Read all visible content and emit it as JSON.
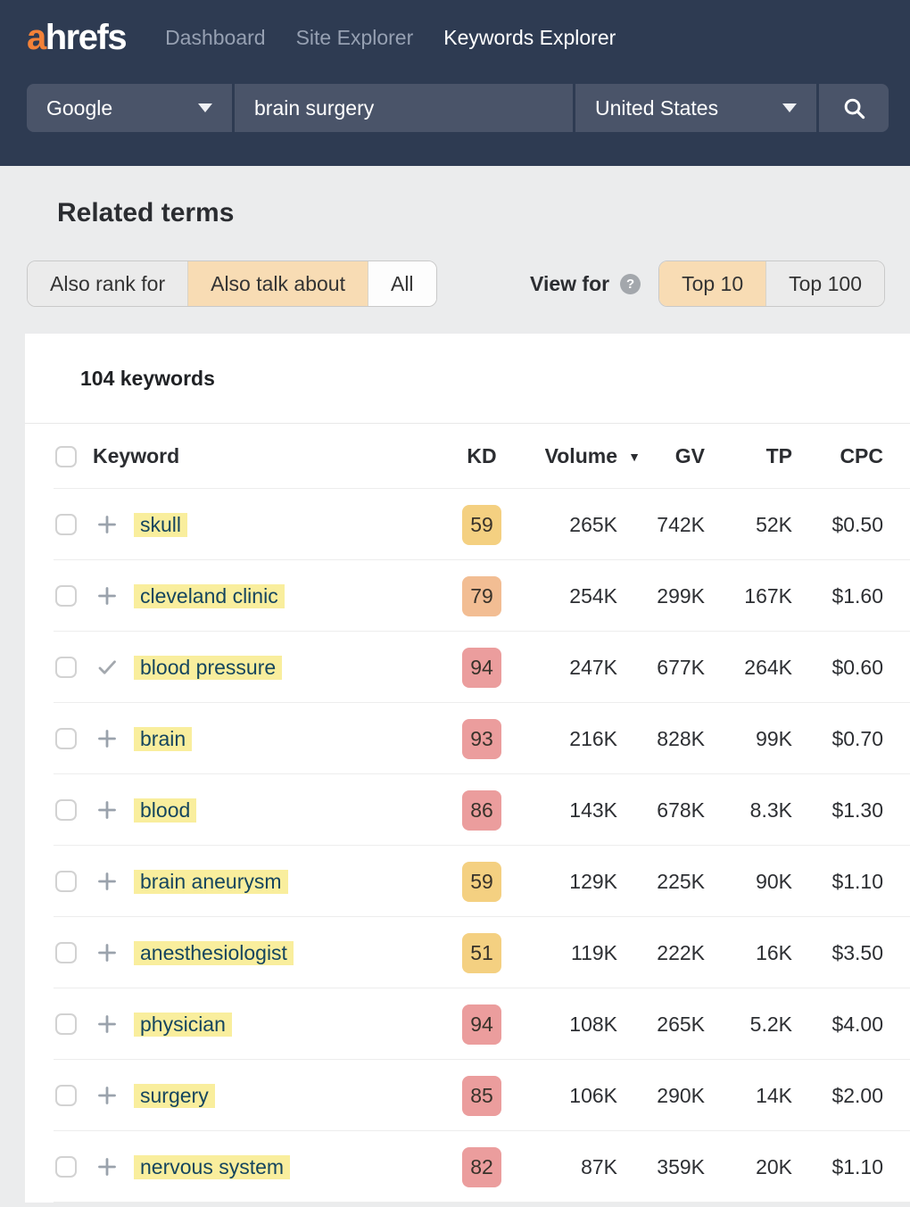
{
  "header": {
    "logo_a": "a",
    "logo_rest": "hrefs",
    "nav": [
      {
        "label": "Dashboard",
        "active": false
      },
      {
        "label": "Site Explorer",
        "active": false
      },
      {
        "label": "Keywords Explorer",
        "active": true
      }
    ],
    "search": {
      "engine": "Google",
      "query": "brain surgery",
      "country": "United States"
    }
  },
  "section": {
    "title": "Related terms"
  },
  "filters": {
    "scope": [
      {
        "label": "Also rank for",
        "state": "muted"
      },
      {
        "label": "Also talk about",
        "state": "selected"
      },
      {
        "label": "All",
        "state": "default"
      }
    ],
    "view_for_label": "View for",
    "help_glyph": "?",
    "view": [
      {
        "label": "Top 10",
        "state": "selected"
      },
      {
        "label": "Top 100",
        "state": "muted"
      }
    ]
  },
  "icons": {
    "sort_desc": "▼"
  },
  "table": {
    "summary": "104 keywords",
    "columns": {
      "keyword": "Keyword",
      "kd": "KD",
      "volume": "Volume",
      "gv": "GV",
      "tp": "TP",
      "cpc": "CPC"
    },
    "sort": {
      "column": "Volume",
      "direction": "desc"
    },
    "rows": [
      {
        "keyword": "skull",
        "action": "plus",
        "kd": "59",
        "kd_color": "yellow",
        "volume": "265K",
        "gv": "742K",
        "tp": "52K",
        "cpc": "$0.50"
      },
      {
        "keyword": "cleveland clinic",
        "action": "plus",
        "kd": "79",
        "kd_color": "orange",
        "volume": "254K",
        "gv": "299K",
        "tp": "167K",
        "cpc": "$1.60"
      },
      {
        "keyword": "blood pressure",
        "action": "check",
        "kd": "94",
        "kd_color": "red",
        "volume": "247K",
        "gv": "677K",
        "tp": "264K",
        "cpc": "$0.60"
      },
      {
        "keyword": "brain",
        "action": "plus",
        "kd": "93",
        "kd_color": "red",
        "volume": "216K",
        "gv": "828K",
        "tp": "99K",
        "cpc": "$0.70"
      },
      {
        "keyword": "blood",
        "action": "plus",
        "kd": "86",
        "kd_color": "red",
        "volume": "143K",
        "gv": "678K",
        "tp": "8.3K",
        "cpc": "$1.30"
      },
      {
        "keyword": "brain aneurysm",
        "action": "plus",
        "kd": "59",
        "kd_color": "yellow",
        "volume": "129K",
        "gv": "225K",
        "tp": "90K",
        "cpc": "$1.10"
      },
      {
        "keyword": "anesthesiologist",
        "action": "plus",
        "kd": "51",
        "kd_color": "yellow",
        "volume": "119K",
        "gv": "222K",
        "tp": "16K",
        "cpc": "$3.50"
      },
      {
        "keyword": "physician",
        "action": "plus",
        "kd": "94",
        "kd_color": "red",
        "volume": "108K",
        "gv": "265K",
        "tp": "5.2K",
        "cpc": "$4.00"
      },
      {
        "keyword": "surgery",
        "action": "plus",
        "kd": "85",
        "kd_color": "red",
        "volume": "106K",
        "gv": "290K",
        "tp": "14K",
        "cpc": "$2.00"
      },
      {
        "keyword": "nervous system",
        "action": "plus",
        "kd": "82",
        "kd_color": "red",
        "volume": "87K",
        "gv": "359K",
        "tp": "20K",
        "cpc": "$1.10"
      }
    ]
  },
  "colors": {
    "header_bg": "#2e3b52",
    "search_field_bg": "#4a5469",
    "logo_orange": "#f28138",
    "selected_filter_bg": "#f8dcb4",
    "keyword_highlight": "#f9ee9d",
    "keyword_text": "#15455e",
    "kd_yellow": "#f4d081",
    "kd_orange": "#f2bd93",
    "kd_red": "#eb9d9d"
  }
}
